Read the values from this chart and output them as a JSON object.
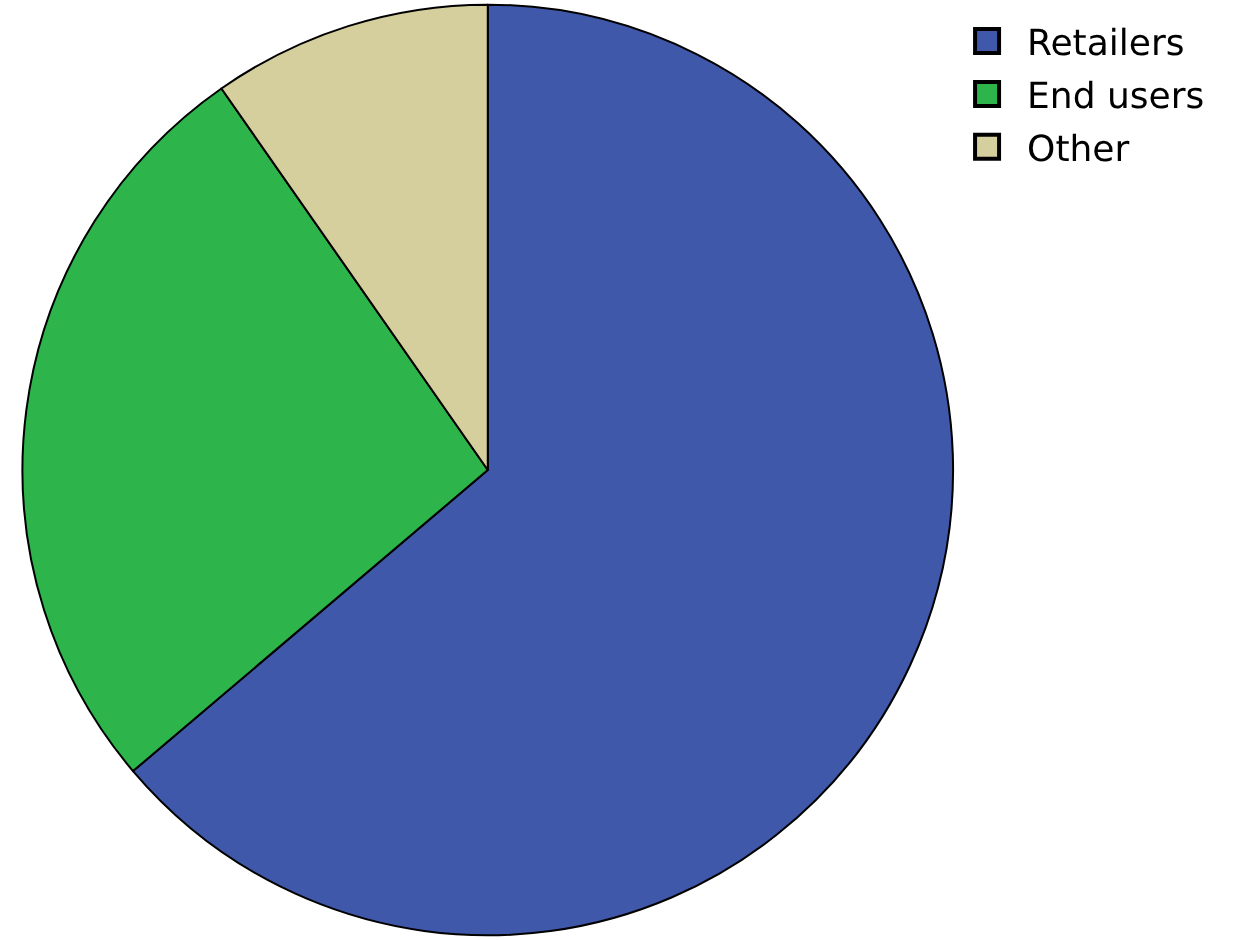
{
  "chart_data": {
    "type": "pie",
    "categories": [
      "Retailers",
      "End users",
      "Other"
    ],
    "values": [
      63.8,
      26.5,
      9.7
    ],
    "colors": [
      "#3f58a9",
      "#2db44b",
      "#d4cf9c"
    ],
    "legend": "top right"
  }
}
